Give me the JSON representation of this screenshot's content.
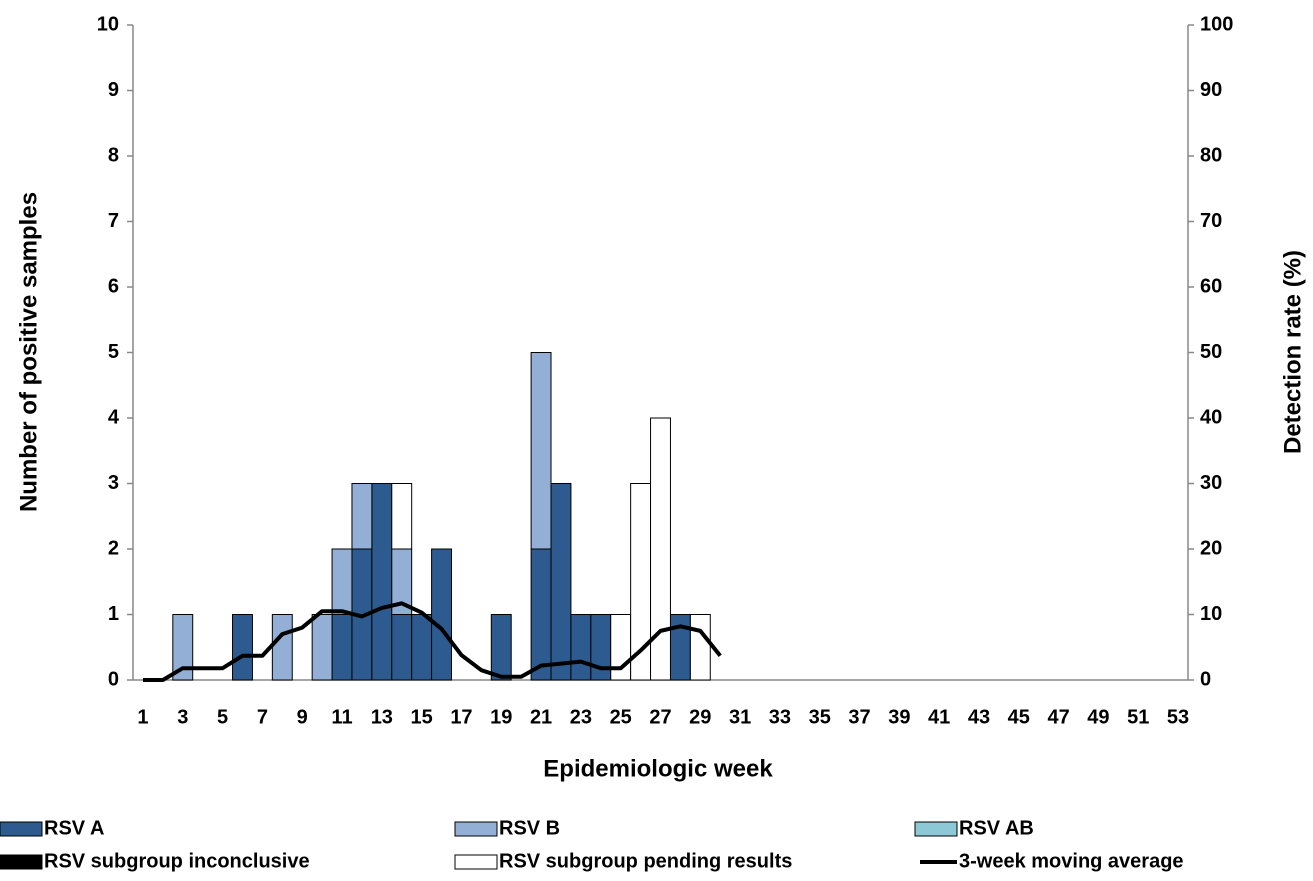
{
  "chart_data": {
    "type": "stacked-bar-line",
    "x_label": "Epidemiologic week",
    "y_label": "Number of positive samples",
    "y2_label": "Detection rate (%)",
    "categories": [
      "1",
      null,
      "3",
      null,
      "5",
      null,
      "7",
      null,
      "9",
      null,
      "11",
      null,
      "13",
      null,
      "15",
      null,
      "17",
      null,
      "19",
      null,
      "21",
      null,
      "23",
      null,
      "25",
      null,
      "27",
      null,
      "29",
      null,
      "31",
      null,
      "33",
      null,
      "35",
      null,
      "37",
      null,
      "39",
      null,
      "41",
      null,
      "43",
      null,
      "45",
      null,
      "47",
      null,
      "49",
      null,
      "51",
      null,
      "53"
    ],
    "series": [
      {
        "name": "RSV A",
        "color": "#2e5b8f",
        "values": [
          0,
          0,
          0,
          0,
          0,
          1,
          0,
          0,
          0,
          0,
          1,
          2,
          3,
          1,
          1,
          2,
          0,
          0,
          1,
          0,
          2,
          3,
          1,
          1,
          0,
          0,
          0,
          1,
          0,
          0,
          0,
          0,
          0,
          0,
          0,
          0,
          0,
          0,
          0,
          0,
          0,
          0,
          0,
          0,
          0,
          0,
          0,
          0,
          0,
          0,
          0,
          0,
          0
        ]
      },
      {
        "name": "RSV B",
        "color": "#93afd6",
        "values": [
          0,
          0,
          1,
          0,
          0,
          0,
          0,
          1,
          0,
          1,
          1,
          1,
          0,
          1,
          0,
          0,
          0,
          0,
          0,
          0,
          3,
          0,
          0,
          0,
          0,
          0,
          0,
          0,
          0,
          0,
          0,
          0,
          0,
          0,
          0,
          0,
          0,
          0,
          0,
          0,
          0,
          0,
          0,
          0,
          0,
          0,
          0,
          0,
          0,
          0,
          0,
          0,
          0
        ]
      },
      {
        "name": "RSV AB",
        "color": "#8cc8d6",
        "values": [
          0,
          0,
          0,
          0,
          0,
          0,
          0,
          0,
          0,
          0,
          0,
          0,
          0,
          0,
          0,
          0,
          0,
          0,
          0,
          0,
          0,
          0,
          0,
          0,
          0,
          0,
          0,
          0,
          0,
          0,
          0,
          0,
          0,
          0,
          0,
          0,
          0,
          0,
          0,
          0,
          0,
          0,
          0,
          0,
          0,
          0,
          0,
          0,
          0,
          0,
          0,
          0,
          0
        ]
      },
      {
        "name": "RSV subgroup inconclusive",
        "color": "#000000",
        "values": [
          0,
          0,
          0,
          0,
          0,
          0,
          0,
          0,
          0,
          0,
          0,
          0,
          0,
          0,
          0,
          0,
          0,
          0,
          0,
          0,
          0,
          0,
          0,
          0,
          0,
          0,
          0,
          0,
          0,
          0,
          0,
          0,
          0,
          0,
          0,
          0,
          0,
          0,
          0,
          0,
          0,
          0,
          0,
          0,
          0,
          0,
          0,
          0,
          0,
          0,
          0,
          0,
          0
        ]
      },
      {
        "name": "RSV subgroup pending results",
        "color": "#ffffff",
        "values": [
          0,
          0,
          0,
          0,
          0,
          0,
          0,
          0,
          0,
          0,
          0,
          0,
          0,
          1,
          0,
          0,
          0,
          0,
          0,
          0,
          0,
          0,
          0,
          0,
          1,
          3,
          4,
          0,
          1,
          0,
          0,
          0,
          0,
          0,
          0,
          0,
          0,
          0,
          0,
          0,
          0,
          0,
          0,
          0,
          0,
          0,
          0,
          0,
          0,
          0,
          0,
          0,
          0
        ]
      },
      {
        "name": "3-week moving average",
        "color": "#000000",
        "axis": "y2",
        "kind": "line",
        "values": [
          0,
          0,
          1.8,
          1.8,
          1.8,
          3.7,
          3.7,
          7,
          8,
          10.5,
          10.5,
          9.7,
          11,
          11.7,
          10.3,
          7.8,
          3.8,
          1.5,
          0.5,
          0.5,
          2.2,
          2.5,
          2.8,
          1.8,
          1.8,
          4.5,
          7.5,
          8.2,
          7.5,
          3.7,
          null,
          null,
          null,
          null,
          null,
          null,
          null,
          null,
          null,
          null,
          null,
          null,
          null,
          null,
          null,
          null,
          null,
          null,
          null,
          null,
          null,
          null,
          null
        ]
      }
    ],
    "ylim": [
      0,
      10
    ],
    "yticks": [
      0,
      1,
      2,
      3,
      4,
      5,
      6,
      7,
      8,
      9,
      10
    ],
    "y2lim": [
      0,
      100
    ],
    "y2ticks": [
      0,
      10,
      20,
      30,
      40,
      50,
      60,
      70,
      80,
      90,
      100
    ],
    "legend": "bottom"
  }
}
